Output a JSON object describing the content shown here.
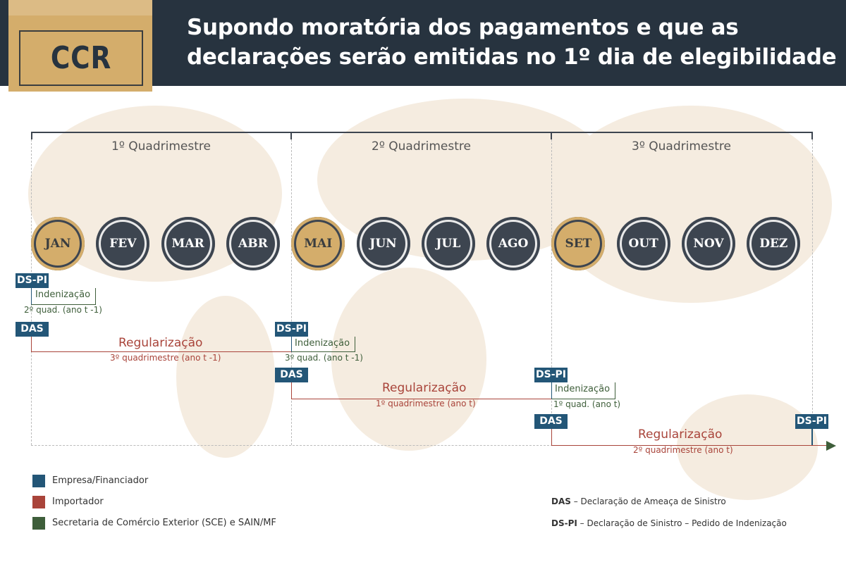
{
  "header": {
    "logo": "CCR",
    "title_line1": "Supondo moratória dos pagamentos e que as",
    "title_line2": "declarações serão emitidas no 1º dia de elegibilidade"
  },
  "quadrimesters": [
    "1º Quadrimestre",
    "2º Quadrimestre",
    "3º Quadrimestre"
  ],
  "months": [
    {
      "label": "JAN",
      "highlight": true
    },
    {
      "label": "FEV",
      "highlight": false
    },
    {
      "label": "MAR",
      "highlight": false
    },
    {
      "label": "ABR",
      "highlight": false
    },
    {
      "label": "MAI",
      "highlight": true
    },
    {
      "label": "JUN",
      "highlight": false
    },
    {
      "label": "JUL",
      "highlight": false
    },
    {
      "label": "AGO",
      "highlight": false
    },
    {
      "label": "SET",
      "highlight": true
    },
    {
      "label": "OUT",
      "highlight": false
    },
    {
      "label": "NOV",
      "highlight": false
    },
    {
      "label": "DEZ",
      "highlight": false
    }
  ],
  "flow": {
    "dspi": "DS-PI",
    "das": "DAS",
    "indenizacao": "Indenização",
    "regularizacao": "Regularização",
    "q1": {
      "ind_period": "2º quad. (ano t -1)",
      "reg_period": "3º quadrimestre (ano t -1)"
    },
    "q2": {
      "ind_period": "3º quad. (ano t -1)",
      "reg_period": "1º quadrimestre (ano t)"
    },
    "q3": {
      "ind_period": "1º quad. (ano t)",
      "reg_period": "2º quadrimestre (ano t)"
    }
  },
  "legend": [
    {
      "label": "Empresa/Financiador",
      "color": "#235677"
    },
    {
      "label": "Importador",
      "color": "#a9443a"
    },
    {
      "label": "Secretaria de Comércio Exterior (SCE) e SAIN/MF",
      "color": "#3e5e3a"
    }
  ],
  "definitions": [
    {
      "term": "DAS",
      "text": " – Declaração de Ameaça de Sinistro"
    },
    {
      "term": "DS-PI",
      "text": " – Declaração de Sinistro – Pedido de Indenização"
    }
  ],
  "colors": {
    "header": "#27333f",
    "gold": "#d4ad6b",
    "month_dark": "#3d4550",
    "blue": "#235677",
    "red": "#a9443a",
    "green": "#3e5e3a"
  }
}
